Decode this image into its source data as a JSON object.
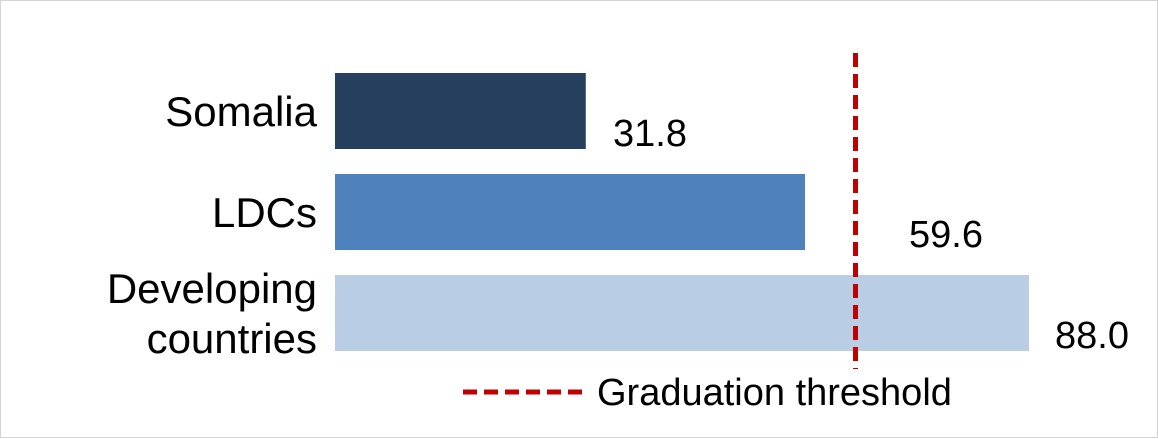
{
  "chart_data": {
    "type": "bar",
    "orientation": "horizontal",
    "categories": [
      "Somalia",
      "LDCs",
      "Developing countries"
    ],
    "category_label_lines": [
      [
        "Somalia"
      ],
      [
        "LDCs"
      ],
      [
        "Developing",
        "countries"
      ]
    ],
    "values": [
      31.8,
      59.6,
      88.0
    ],
    "value_labels": [
      "31.8",
      "59.6",
      "88.0"
    ],
    "bar_colors": [
      "#263f5e",
      "#4f81bd",
      "#b9cde5"
    ],
    "xlim": [
      0,
      88.0
    ],
    "reference_line": {
      "label": "Graduation threshold",
      "value": 66,
      "color": "#c00000",
      "style": "dashed"
    },
    "legend": {
      "position": "bottom",
      "entries": [
        "Graduation threshold"
      ]
    },
    "grid": false,
    "title": "",
    "xlabel": "",
    "ylabel": ""
  }
}
